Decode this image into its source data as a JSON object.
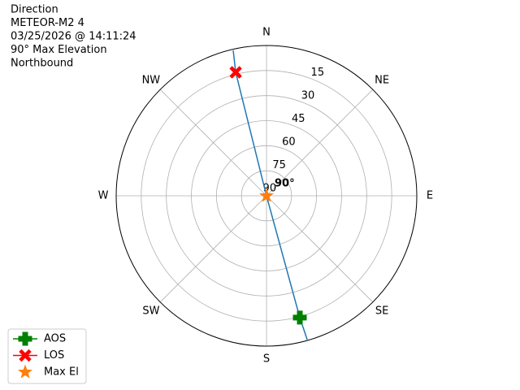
{
  "chart_data": {
    "type": "polar",
    "title": [
      "Direction",
      "METEOR-M2 4",
      "03/25/2026 @ 14:11:24",
      "90° Max Elevation",
      "Northbound"
    ],
    "annotation": "90°",
    "xlim": [
      0,
      360
    ],
    "xticks": [
      {
        "value": 0,
        "label": "N"
      },
      {
        "value": 45,
        "label": "NE"
      },
      {
        "value": 90,
        "label": "E"
      },
      {
        "value": 135,
        "label": "SE"
      },
      {
        "value": 180,
        "label": "S"
      },
      {
        "value": 225,
        "label": "SW"
      },
      {
        "value": 270,
        "label": "W"
      },
      {
        "value": 315,
        "label": "NW"
      }
    ],
    "ylim": [
      90,
      0
    ],
    "yticks": [
      15,
      30,
      45,
      60,
      75,
      90
    ],
    "grid": true,
    "legend": "lower left",
    "series": [
      {
        "color": "#1f77b4",
        "marker": "line",
        "x": [
          347.1,
          346,
          0,
          164.7,
          164.2
        ],
        "values": [
          0.7,
          13.8,
          90,
          14.4,
          0.5
        ]
      },
      {
        "name": "AOS",
        "color": "#008000",
        "marker": "plus",
        "x": [
          164.7
        ],
        "values": [
          14.4
        ]
      },
      {
        "name": "LOS",
        "color": "#ff0000",
        "marker": "x",
        "x": [
          346
        ],
        "values": [
          13.8
        ]
      },
      {
        "name": "Max El",
        "color": "#ff7f0e",
        "marker": "star",
        "x": [
          0
        ],
        "values": [
          90
        ]
      }
    ]
  }
}
